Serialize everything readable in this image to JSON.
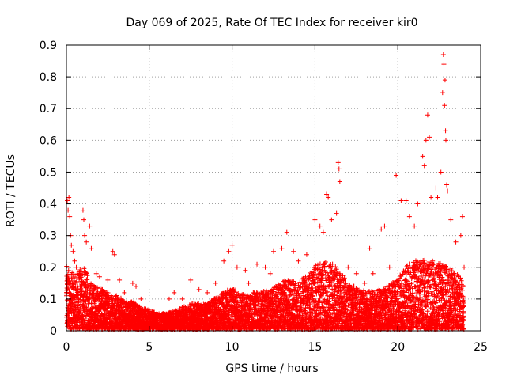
{
  "chart_data": {
    "type": "scatter",
    "title": "Day 069 of 2025, Rate Of TEC Index for receiver kir0",
    "xlabel": "GPS time / hours",
    "ylabel": "ROTI / TECUs",
    "xlim": [
      0,
      25
    ],
    "ylim": [
      0,
      0.9
    ],
    "x_ticks": [
      0,
      5,
      10,
      15,
      20,
      25
    ],
    "x_tick_labels": [
      "0",
      "5",
      "10",
      "15",
      "20",
      "25"
    ],
    "y_ticks": [
      0,
      0.1,
      0.2,
      0.3,
      0.4,
      0.5,
      0.6,
      0.7,
      0.8,
      0.9
    ],
    "y_tick_labels": [
      "0",
      "0.1",
      "0.2",
      "0.3",
      "0.4",
      "0.5",
      "0.6",
      "0.7",
      "0.8",
      "0.9"
    ],
    "grid": true,
    "marker": "plus",
    "color": "#ff0000",
    "series": [
      {
        "points": [
          [
            0.05,
            0.41
          ],
          [
            0.1,
            0.38
          ],
          [
            0.15,
            0.42
          ],
          [
            0.2,
            0.36
          ],
          [
            0.25,
            0.3
          ],
          [
            0.3,
            0.27
          ],
          [
            0.4,
            0.25
          ],
          [
            0.5,
            0.22
          ],
          [
            0.6,
            0.2
          ],
          [
            0.8,
            0.18
          ],
          [
            1.0,
            0.38
          ],
          [
            1.05,
            0.35
          ],
          [
            1.1,
            0.3
          ],
          [
            1.2,
            0.28
          ],
          [
            1.4,
            0.33
          ],
          [
            1.5,
            0.26
          ],
          [
            1.8,
            0.18
          ],
          [
            2.0,
            0.17
          ],
          [
            2.5,
            0.16
          ],
          [
            2.8,
            0.25
          ],
          [
            2.9,
            0.24
          ],
          [
            3.2,
            0.16
          ],
          [
            3.5,
            0.12
          ],
          [
            4.0,
            0.15
          ],
          [
            4.2,
            0.14
          ],
          [
            4.5,
            0.1
          ],
          [
            5.0,
            0.06
          ],
          [
            5.5,
            0.05
          ],
          [
            6.0,
            0.05
          ],
          [
            6.2,
            0.1
          ],
          [
            6.5,
            0.12
          ],
          [
            7.0,
            0.1
          ],
          [
            7.5,
            0.16
          ],
          [
            8.0,
            0.13
          ],
          [
            8.5,
            0.12
          ],
          [
            9.0,
            0.15
          ],
          [
            9.5,
            0.22
          ],
          [
            9.8,
            0.25
          ],
          [
            10.0,
            0.27
          ],
          [
            10.3,
            0.2
          ],
          [
            10.8,
            0.19
          ],
          [
            11.0,
            0.15
          ],
          [
            11.5,
            0.21
          ],
          [
            12.0,
            0.2
          ],
          [
            12.3,
            0.18
          ],
          [
            12.5,
            0.25
          ],
          [
            13.0,
            0.26
          ],
          [
            13.3,
            0.31
          ],
          [
            13.7,
            0.25
          ],
          [
            14.0,
            0.22
          ],
          [
            14.5,
            0.24
          ],
          [
            15.0,
            0.35
          ],
          [
            15.3,
            0.33
          ],
          [
            15.5,
            0.31
          ],
          [
            15.7,
            0.43
          ],
          [
            15.8,
            0.42
          ],
          [
            16.0,
            0.35
          ],
          [
            16.3,
            0.37
          ],
          [
            16.4,
            0.53
          ],
          [
            16.45,
            0.51
          ],
          [
            16.5,
            0.47
          ],
          [
            17.0,
            0.2
          ],
          [
            17.5,
            0.18
          ],
          [
            18.0,
            0.15
          ],
          [
            18.3,
            0.26
          ],
          [
            18.5,
            0.18
          ],
          [
            19.0,
            0.32
          ],
          [
            19.2,
            0.33
          ],
          [
            19.5,
            0.2
          ],
          [
            19.9,
            0.49
          ],
          [
            20.2,
            0.41
          ],
          [
            20.5,
            0.41
          ],
          [
            20.7,
            0.36
          ],
          [
            21.0,
            0.33
          ],
          [
            21.2,
            0.4
          ],
          [
            21.5,
            0.55
          ],
          [
            21.6,
            0.52
          ],
          [
            21.7,
            0.6
          ],
          [
            21.8,
            0.68
          ],
          [
            21.9,
            0.61
          ],
          [
            22.0,
            0.42
          ],
          [
            22.3,
            0.45
          ],
          [
            22.4,
            0.42
          ],
          [
            22.6,
            0.5
          ],
          [
            22.7,
            0.75
          ],
          [
            22.75,
            0.87
          ],
          [
            22.78,
            0.84
          ],
          [
            22.82,
            0.71
          ],
          [
            22.85,
            0.79
          ],
          [
            22.88,
            0.63
          ],
          [
            22.9,
            0.6
          ],
          [
            22.95,
            0.46
          ],
          [
            23.0,
            0.44
          ],
          [
            23.2,
            0.35
          ],
          [
            23.5,
            0.28
          ],
          [
            23.8,
            0.3
          ],
          [
            23.9,
            0.36
          ],
          [
            24.0,
            0.2
          ]
        ]
      }
    ],
    "envelope_x": [
      0,
      0.5,
      1,
      1.5,
      2,
      2.5,
      3,
      3.5,
      4,
      4.5,
      5,
      5.5,
      6,
      6.5,
      7,
      7.5,
      8,
      8.5,
      9,
      9.5,
      10,
      10.5,
      11,
      11.5,
      12,
      12.5,
      13,
      13.5,
      14,
      14.5,
      15,
      15.5,
      16,
      16.5,
      17,
      17.5,
      18,
      18.5,
      19,
      19.5,
      20,
      20.5,
      21,
      21.5,
      22,
      22.5,
      23,
      23.5,
      24
    ],
    "envelope_y": [
      0.2,
      0.17,
      0.2,
      0.15,
      0.13,
      0.12,
      0.11,
      0.09,
      0.09,
      0.07,
      0.06,
      0.05,
      0.05,
      0.06,
      0.07,
      0.08,
      0.08,
      0.08,
      0.1,
      0.12,
      0.13,
      0.11,
      0.11,
      0.12,
      0.12,
      0.13,
      0.15,
      0.16,
      0.15,
      0.17,
      0.2,
      0.21,
      0.22,
      0.18,
      0.15,
      0.13,
      0.12,
      0.12,
      0.13,
      0.14,
      0.16,
      0.2,
      0.22,
      0.22,
      0.22,
      0.21,
      0.2,
      0.18,
      0.15
    ]
  }
}
